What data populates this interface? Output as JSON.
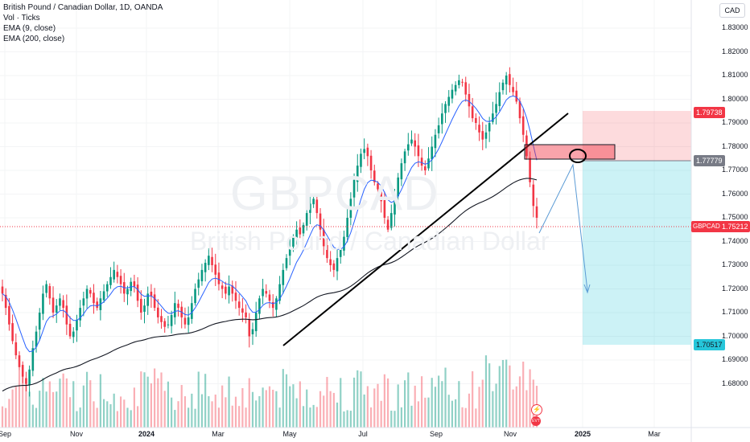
{
  "legend": {
    "title": "British Pound / Canadian Dollar, 1D, OANDA",
    "vol": "Vol · Ticks",
    "ema9": "EMA (9, close)",
    "ema200": "EMA (200, close)"
  },
  "currency": "CAD",
  "watermark": {
    "symbol": "GBPCAD",
    "description": "British Pound / Canadian Dollar"
  },
  "price_axis": [
    "1.83000",
    "1.82000",
    "1.81000",
    "1.80000",
    "1.79000",
    "1.78000",
    "1.77000",
    "1.76000",
    "1.75000",
    "1.74000",
    "1.73000",
    "1.72000",
    "1.71000",
    "1.70000",
    "1.69000",
    "1.68000"
  ],
  "tags": {
    "stop": "1.79738",
    "entry": "1.77779",
    "symbol": "GBPCAD",
    "current": "1.75212",
    "target": "1.70517"
  },
  "time_axis": [
    {
      "label": "Sep",
      "bold": false
    },
    {
      "label": "Nov",
      "bold": false
    },
    {
      "label": "2024",
      "bold": true
    },
    {
      "label": "Mar",
      "bold": false
    },
    {
      "label": "May",
      "bold": false
    },
    {
      "label": "Jul",
      "bold": false
    },
    {
      "label": "Sep",
      "bold": false
    },
    {
      "label": "Nov",
      "bold": false
    },
    {
      "label": "2025",
      "bold": true
    },
    {
      "label": "Mar",
      "bold": false
    }
  ],
  "icons": {
    "flash": "⚡",
    "event": "EVT"
  },
  "colors": {
    "up": "#089981",
    "down": "#f23645",
    "ema9": "#2962ff",
    "ema200": "#131722",
    "stop_zone": "rgba(242,54,69,0.2)",
    "target_zone": "rgba(0,188,212,0.2)",
    "supply_zone": "rgba(242,54,69,0.45)"
  },
  "chart_data": {
    "type": "line",
    "series_close": [
      1.718,
      1.712,
      1.705,
      1.698,
      1.692,
      1.687,
      1.683,
      1.68,
      1.686,
      1.695,
      1.702,
      1.71,
      1.718,
      1.722,
      1.716,
      1.71,
      1.713,
      1.716,
      1.712,
      1.705,
      1.7,
      1.702,
      1.707,
      1.712,
      1.716,
      1.72,
      1.718,
      1.714,
      1.712,
      1.716,
      1.719,
      1.722,
      1.725,
      1.728,
      1.725,
      1.722,
      1.718,
      1.72,
      1.723,
      1.721,
      1.715,
      1.71,
      1.713,
      1.718,
      1.717,
      1.712,
      1.708,
      1.706,
      1.704,
      1.705,
      1.709,
      1.714,
      1.712,
      1.708,
      1.705,
      1.708,
      1.714,
      1.72,
      1.724,
      1.728,
      1.731,
      1.734,
      1.73,
      1.726,
      1.722,
      1.72,
      1.718,
      1.721,
      1.718,
      1.715,
      1.712,
      1.71,
      1.708,
      1.7,
      1.703,
      1.71,
      1.716,
      1.72,
      1.718,
      1.715,
      1.712,
      1.716,
      1.722,
      1.728,
      1.733,
      1.737,
      1.742,
      1.745,
      1.743,
      1.747,
      1.752,
      1.756,
      1.758,
      1.752,
      1.745,
      1.738,
      1.733,
      1.73,
      1.728,
      1.733,
      1.737,
      1.742,
      1.75,
      1.758,
      1.766,
      1.772,
      1.777,
      1.779,
      1.776,
      1.77,
      1.765,
      1.762,
      1.757,
      1.75,
      1.745,
      1.752,
      1.76,
      1.767,
      1.773,
      1.778,
      1.781,
      1.783,
      1.78,
      1.776,
      1.772,
      1.77,
      1.775,
      1.78,
      1.785,
      1.789,
      1.794,
      1.798,
      1.801,
      1.804,
      1.806,
      1.808,
      1.807,
      1.802,
      1.797,
      1.792,
      1.79,
      1.786,
      1.783,
      1.786,
      1.79,
      1.794,
      1.798,
      1.803,
      1.807,
      1.81,
      1.806,
      1.803,
      1.799,
      1.792,
      1.785,
      1.776,
      1.765,
      1.755,
      1.75
    ]
  }
}
